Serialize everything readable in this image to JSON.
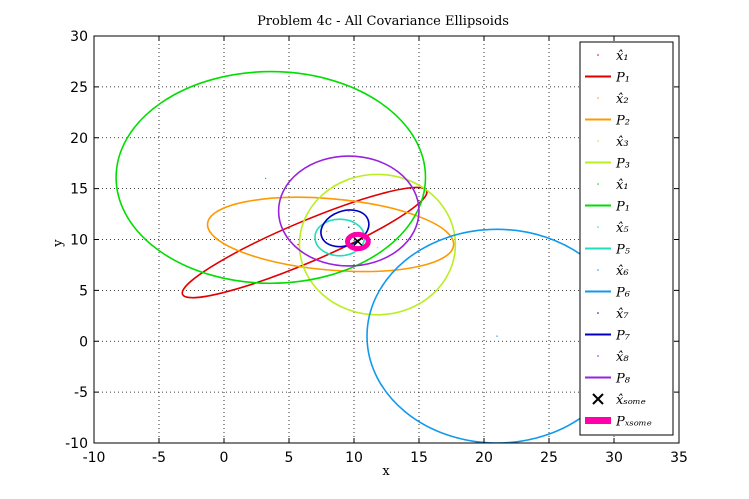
{
  "chart_data": {
    "type": "line",
    "title": "Problem 4c - All Covariance Ellipsoids",
    "xlabel": "x",
    "ylabel": "y",
    "xlim": [
      -10,
      35
    ],
    "ylim": [
      -10,
      30
    ],
    "xticks": [
      -10,
      -5,
      0,
      5,
      10,
      15,
      20,
      25,
      30,
      35
    ],
    "yticks": [
      -10,
      -5,
      0,
      5,
      10,
      15,
      20,
      25,
      30
    ],
    "grid": true,
    "legend_position": "top-right",
    "series": [
      {
        "name": "x̂₁",
        "kind": "point",
        "x": 5.7,
        "y": 9.5,
        "color": "#e00000"
      },
      {
        "name": "P₁",
        "kind": "ellipse",
        "cx": 6.2,
        "cy": 9.7,
        "a": 10.2,
        "b": 2.0,
        "angle": 23,
        "color": "#e00000"
      },
      {
        "name": "x̂₂",
        "kind": "point",
        "x": 7.9,
        "y": 10.8,
        "color": "#ff9900"
      },
      {
        "name": "P₂",
        "kind": "ellipse",
        "cx": 8.2,
        "cy": 10.5,
        "a": 9.5,
        "b": 3.5,
        "angle": -5,
        "color": "#ff9900"
      },
      {
        "name": "x̂₃",
        "kind": "point",
        "x": 11.8,
        "y": 9.2,
        "color": "#bbee22"
      },
      {
        "name": "P₃",
        "kind": "ellipse",
        "cx": 11.8,
        "cy": 9.5,
        "a": 6.0,
        "b": 6.9,
        "angle": 0,
        "color": "#bbee22"
      },
      {
        "name": "x̂₁",
        "kind": "point",
        "x": 3.2,
        "y": 16.0,
        "color": "#00dd00"
      },
      {
        "name": "P₁",
        "kind": "ellipse",
        "cx": 3.6,
        "cy": 16.1,
        "a": 11.9,
        "b": 10.4,
        "angle": 0,
        "color": "#00dd00"
      },
      {
        "name": "x̂₅",
        "kind": "point",
        "x": 8.9,
        "y": 10.1,
        "color": "#22ddbb"
      },
      {
        "name": "P₅",
        "kind": "ellipse",
        "cx": 8.9,
        "cy": 10.2,
        "a": 1.9,
        "b": 1.8,
        "angle": 0,
        "color": "#22ddbb"
      },
      {
        "name": "x̂₆",
        "kind": "point",
        "x": 21.0,
        "y": 0.5,
        "color": "#1199ee"
      },
      {
        "name": "P₆",
        "kind": "ellipse",
        "cx": 21.0,
        "cy": 0.5,
        "a": 10.0,
        "b": 10.5,
        "angle": 0,
        "color": "#1199ee"
      },
      {
        "name": "x̂₇",
        "kind": "point",
        "x": 9.6,
        "y": 11.2,
        "color": "#0000bb"
      },
      {
        "name": "P₇",
        "kind": "ellipse",
        "cx": 9.3,
        "cy": 11.1,
        "a": 1.9,
        "b": 1.7,
        "angle": 20,
        "color": "#0000bb"
      },
      {
        "name": "x̂₈",
        "kind": "point",
        "x": 9.6,
        "y": 12.8,
        "color": "#9922dd"
      },
      {
        "name": "P₈",
        "kind": "ellipse",
        "cx": 9.6,
        "cy": 12.8,
        "a": 5.4,
        "b": 5.4,
        "angle": 0,
        "color": "#9922dd"
      },
      {
        "name": "x̂ₛₒₘₑ",
        "kind": "marker",
        "x": 10.3,
        "y": 9.8,
        "color": "#000000"
      },
      {
        "name": "Pₓₛₒₘₑ",
        "kind": "ellipse",
        "cx": 10.3,
        "cy": 9.8,
        "a": 0.8,
        "b": 0.7,
        "angle": 0,
        "color": "#ff00aa",
        "linewidth": 5
      }
    ]
  }
}
